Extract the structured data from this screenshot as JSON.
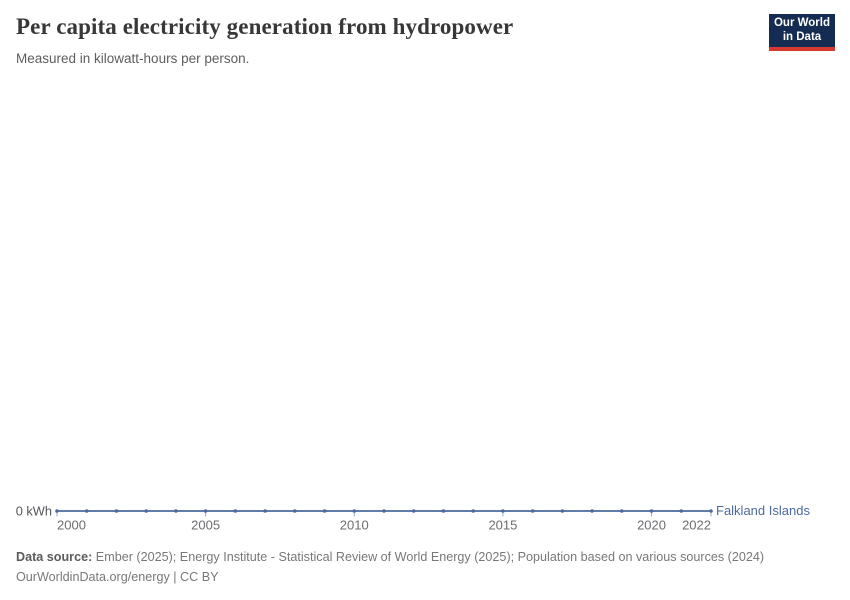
{
  "header": {
    "title": "Per capita electricity generation from hydropower",
    "subtitle": "Measured in kilowatt-hours per person.",
    "logo": {
      "line1": "Our World",
      "line2": "in Data",
      "bg_color": "#142B52",
      "accent_color": "#D6392E"
    }
  },
  "chart_data": {
    "type": "line",
    "title": "Per capita electricity generation from hydropower",
    "subtitle": "Measured in kilowatt-hours per person.",
    "x": [
      2000,
      2001,
      2002,
      2003,
      2004,
      2005,
      2006,
      2007,
      2008,
      2009,
      2010,
      2011,
      2012,
      2013,
      2014,
      2015,
      2016,
      2017,
      2018,
      2019,
      2020,
      2021,
      2022
    ],
    "series": [
      {
        "name": "Falkland Islands",
        "color": "#4C6A9C",
        "values": [
          0,
          0,
          0,
          0,
          0,
          0,
          0,
          0,
          0,
          0,
          0,
          0,
          0,
          0,
          0,
          0,
          0,
          0,
          0,
          0,
          0,
          0,
          0
        ]
      }
    ],
    "x_ticks": [
      2000,
      2005,
      2010,
      2015,
      2020,
      2022
    ],
    "x_tick_labels": [
      "2000",
      "2005",
      "2010",
      "2015",
      "2020",
      "2022"
    ],
    "y_tick_labels": [
      "0 kWh"
    ],
    "xlim": [
      2000,
      2022
    ],
    "ylim": [
      0,
      0
    ],
    "grid": false,
    "legend_position": "line-end",
    "axis_text_color": "#6b6d70",
    "y_label_color": "#54565a"
  },
  "footer": {
    "datasource_label": "Data source:",
    "datasource_text": "Ember (2025); Energy Institute - Statistical Review of World Energy (2025); Population based on various sources (2024)",
    "license_text": "OurWorldinData.org/energy | CC BY"
  }
}
